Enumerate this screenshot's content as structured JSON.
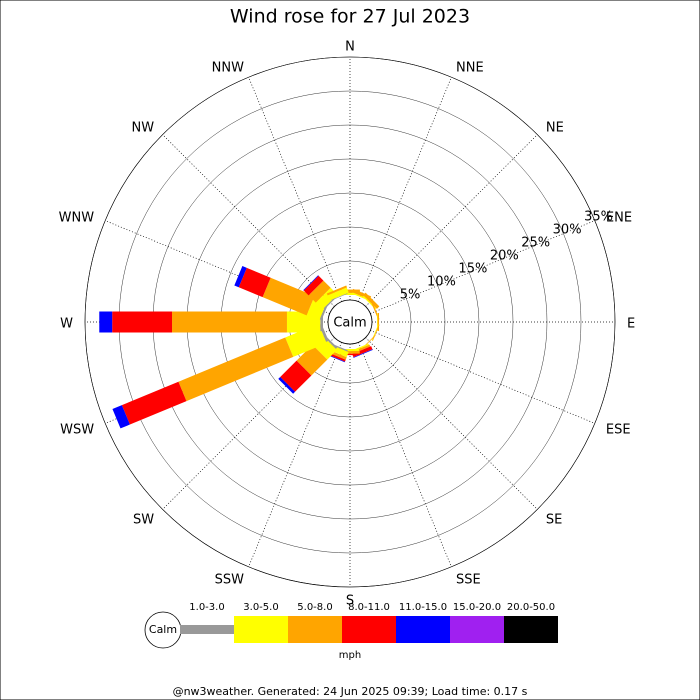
{
  "chart_data": {
    "type": "windrose",
    "title": "Wind rose for 27 Jul 2023",
    "directions": [
      "N",
      "NNE",
      "NE",
      "ENE",
      "E",
      "ESE",
      "SE",
      "SSE",
      "S",
      "SSW",
      "SW",
      "WSW",
      "W",
      "WNW",
      "NW",
      "NNW"
    ],
    "rlim": [
      0,
      35
    ],
    "rticks": [
      {
        "value": 5,
        "label": "5%"
      },
      {
        "value": 10,
        "label": "10%"
      },
      {
        "value": 15,
        "label": "15%"
      },
      {
        "value": 20,
        "label": "20%"
      },
      {
        "value": 25,
        "label": "25%"
      },
      {
        "value": 30,
        "label": "30%"
      },
      {
        "value": 35,
        "label": "35%"
      }
    ],
    "calm_label": "Calm",
    "unit_label": "mph",
    "series": [
      {
        "name": "1.0-3.0",
        "color": "#999999",
        "values": [
          0,
          0,
          0,
          0,
          0,
          0,
          0,
          0,
          0,
          0.2,
          0.3,
          0.4,
          0.4,
          0.3,
          0.2,
          0.1
        ]
      },
      {
        "name": "3.0-5.0",
        "color": "#ffff00",
        "values": [
          0.3,
          0.2,
          0.2,
          0,
          0.1,
          0.1,
          0,
          0.2,
          0.3,
          0.8,
          2.0,
          5.3,
          4.9,
          2.0,
          1.4,
          0.8
        ]
      },
      {
        "name": "5.0-8.0",
        "color": "#ffa500",
        "values": [
          0.5,
          0.5,
          0.5,
          0.2,
          0.2,
          0.1,
          0.1,
          0.3,
          0.4,
          0.4,
          3.3,
          17,
          16.9,
          7,
          1.5,
          0.3
        ]
      },
      {
        "name": "8.0-11.0",
        "color": "#ff0000",
        "values": [
          0,
          0,
          0,
          0,
          0,
          0,
          0,
          0.5,
          0.2,
          0.3,
          3.4,
          9,
          8.8,
          3.8,
          1.0,
          0
        ]
      },
      {
        "name": "11.0-15.0",
        "color": "#0000ff",
        "values": [
          0,
          0,
          0,
          0,
          0,
          0,
          0,
          0.1,
          0,
          0.1,
          0.4,
          1.5,
          1.9,
          0.7,
          0.1,
          0
        ]
      },
      {
        "name": "15.0-20.0",
        "color": "#a020f0",
        "values": [
          0,
          0,
          0,
          0,
          0,
          0,
          0,
          0,
          0,
          0,
          0,
          0,
          0,
          0,
          0,
          0
        ]
      },
      {
        "name": "20.0-50.0",
        "color": "#000000",
        "values": [
          0,
          0,
          0,
          0,
          0,
          0,
          0,
          0,
          0,
          0,
          0,
          0,
          0,
          0,
          0,
          0
        ]
      }
    ],
    "footer": "@nw3weather. Generated: 24 Jun 2025 09:39; Load time: 0.17 s"
  }
}
